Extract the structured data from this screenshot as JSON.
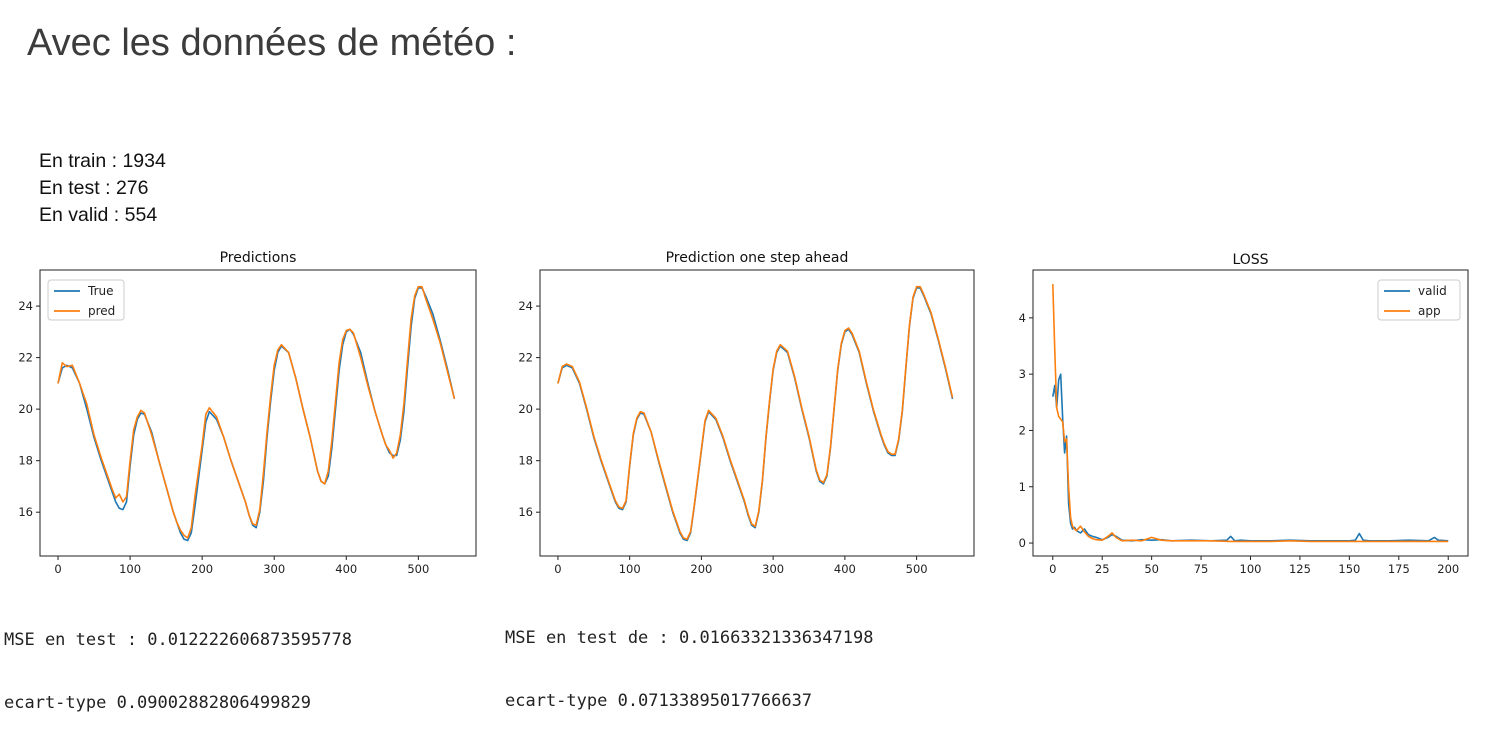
{
  "slide": {
    "title": "Avec les données de météo :",
    "counts": [
      "En train : 1934",
      "En test : 276",
      "En valid : 554"
    ]
  },
  "stats": {
    "pred": [
      "MSE en test : 0.012222606873595778",
      "ecart-type 0.09002882806499829"
    ],
    "osa": [
      "MSE en test de : 0.01663321336347198",
      "ecart-type 0.07133895017766637"
    ]
  },
  "colors": {
    "series1": "#1f77b4",
    "series2": "#ff7f0e"
  },
  "chart_data": [
    {
      "type": "line",
      "title": "Predictions",
      "xlim": [
        -25,
        580
      ],
      "ylim": [
        14.3,
        25.4
      ],
      "xticks": [
        0,
        100,
        200,
        300,
        400,
        500
      ],
      "yticks": [
        16,
        18,
        20,
        22,
        24
      ],
      "legend": "top-left",
      "x": [
        0,
        6,
        12,
        20,
        30,
        40,
        50,
        60,
        70,
        75,
        80,
        85,
        90,
        95,
        100,
        105,
        110,
        115,
        120,
        130,
        140,
        150,
        160,
        165,
        170,
        175,
        180,
        185,
        190,
        195,
        200,
        205,
        210,
        220,
        230,
        240,
        250,
        260,
        265,
        270,
        275,
        280,
        285,
        290,
        295,
        300,
        305,
        310,
        320,
        330,
        340,
        350,
        360,
        365,
        370,
        375,
        380,
        385,
        390,
        395,
        400,
        405,
        410,
        420,
        430,
        440,
        450,
        455,
        460,
        465,
        470,
        475,
        480,
        485,
        490,
        495,
        500,
        505,
        510,
        520,
        530,
        540,
        550
      ],
      "series": [
        {
          "name": "True",
          "values": [
            21.0,
            21.6,
            21.7,
            21.6,
            21.0,
            20.0,
            18.9,
            18.0,
            17.2,
            16.8,
            16.4,
            16.15,
            16.1,
            16.4,
            17.8,
            19.0,
            19.6,
            19.85,
            19.8,
            19.1,
            18.0,
            17.0,
            16.0,
            15.6,
            15.2,
            14.95,
            14.9,
            15.2,
            16.2,
            17.3,
            18.4,
            19.5,
            19.9,
            19.6,
            18.9,
            18.0,
            17.2,
            16.4,
            15.9,
            15.5,
            15.4,
            16.0,
            17.2,
            18.9,
            20.3,
            21.5,
            22.2,
            22.45,
            22.2,
            21.2,
            20.0,
            18.9,
            17.6,
            17.2,
            17.1,
            17.4,
            18.5,
            20.0,
            21.5,
            22.5,
            23.0,
            23.1,
            22.9,
            22.2,
            21.0,
            19.9,
            19.0,
            18.6,
            18.3,
            18.2,
            18.2,
            18.8,
            19.9,
            21.6,
            23.2,
            24.3,
            24.7,
            24.7,
            24.4,
            23.7,
            22.7,
            21.6,
            20.4
          ]
        },
        {
          "name": "pred",
          "values": [
            21.0,
            21.8,
            21.65,
            21.7,
            21.0,
            20.2,
            19.0,
            18.1,
            17.3,
            16.9,
            16.55,
            16.7,
            16.4,
            16.6,
            18.0,
            19.2,
            19.7,
            19.95,
            19.85,
            19.0,
            18.0,
            17.0,
            16.0,
            15.6,
            15.3,
            15.1,
            15.0,
            15.4,
            16.6,
            17.6,
            18.6,
            19.8,
            20.05,
            19.7,
            18.9,
            18.0,
            17.2,
            16.4,
            15.9,
            15.55,
            15.5,
            16.1,
            17.5,
            19.1,
            20.5,
            21.7,
            22.3,
            22.5,
            22.2,
            21.2,
            20.0,
            18.9,
            17.6,
            17.2,
            17.1,
            17.6,
            18.8,
            20.3,
            21.8,
            22.7,
            23.05,
            23.1,
            22.95,
            22.0,
            20.9,
            19.9,
            19.0,
            18.6,
            18.4,
            18.1,
            18.3,
            19.0,
            20.2,
            21.9,
            23.5,
            24.4,
            24.75,
            24.75,
            24.3,
            23.5,
            22.6,
            21.5,
            20.4
          ]
        }
      ]
    },
    {
      "type": "line",
      "title": "Prediction one step ahead",
      "xlim": [
        -25,
        580
      ],
      "ylim": [
        14.3,
        25.4
      ],
      "xticks": [
        0,
        100,
        200,
        300,
        400,
        500
      ],
      "yticks": [
        16,
        18,
        20,
        22,
        24
      ],
      "x": [
        0,
        6,
        12,
        20,
        30,
        40,
        50,
        60,
        70,
        75,
        80,
        85,
        90,
        95,
        100,
        105,
        110,
        115,
        120,
        130,
        140,
        150,
        160,
        165,
        170,
        175,
        180,
        185,
        190,
        195,
        200,
        205,
        210,
        220,
        230,
        240,
        250,
        260,
        265,
        270,
        275,
        280,
        285,
        290,
        295,
        300,
        305,
        310,
        320,
        330,
        340,
        350,
        360,
        365,
        370,
        375,
        380,
        385,
        390,
        395,
        400,
        405,
        410,
        420,
        430,
        440,
        450,
        455,
        460,
        465,
        470,
        475,
        480,
        485,
        490,
        495,
        500,
        505,
        510,
        520,
        530,
        540,
        550
      ],
      "series": [
        {
          "values": [
            21.0,
            21.6,
            21.7,
            21.6,
            21.0,
            20.0,
            18.9,
            18.0,
            17.2,
            16.8,
            16.4,
            16.15,
            16.1,
            16.4,
            17.8,
            19.0,
            19.6,
            19.85,
            19.8,
            19.1,
            18.0,
            17.0,
            16.0,
            15.6,
            15.2,
            14.95,
            14.9,
            15.2,
            16.2,
            17.3,
            18.4,
            19.5,
            19.9,
            19.6,
            18.9,
            18.0,
            17.2,
            16.4,
            15.9,
            15.5,
            15.4,
            16.0,
            17.2,
            18.9,
            20.3,
            21.5,
            22.2,
            22.45,
            22.2,
            21.2,
            20.0,
            18.9,
            17.6,
            17.2,
            17.1,
            17.4,
            18.5,
            20.0,
            21.5,
            22.5,
            23.0,
            23.1,
            22.9,
            22.2,
            21.0,
            19.9,
            19.0,
            18.6,
            18.3,
            18.2,
            18.2,
            18.8,
            19.9,
            21.6,
            23.2,
            24.3,
            24.7,
            24.7,
            24.4,
            23.7,
            22.7,
            21.6,
            20.4
          ]
        },
        {
          "values": [
            21.0,
            21.65,
            21.75,
            21.65,
            21.05,
            20.05,
            18.95,
            18.05,
            17.25,
            16.85,
            16.45,
            16.2,
            16.15,
            16.45,
            17.85,
            19.05,
            19.65,
            19.9,
            19.85,
            19.1,
            18.05,
            17.05,
            16.05,
            15.65,
            15.25,
            15.0,
            14.95,
            15.25,
            16.25,
            17.35,
            18.45,
            19.55,
            19.95,
            19.65,
            18.95,
            18.05,
            17.25,
            16.45,
            15.95,
            15.55,
            15.45,
            16.05,
            17.25,
            18.95,
            20.35,
            21.55,
            22.25,
            22.5,
            22.25,
            21.25,
            20.05,
            18.95,
            17.65,
            17.25,
            17.15,
            17.45,
            18.55,
            20.05,
            21.55,
            22.55,
            23.05,
            23.15,
            22.95,
            22.25,
            21.05,
            19.95,
            19.05,
            18.65,
            18.35,
            18.25,
            18.25,
            18.85,
            19.95,
            21.65,
            23.25,
            24.35,
            24.75,
            24.75,
            24.45,
            23.75,
            22.75,
            21.65,
            20.45
          ]
        }
      ]
    },
    {
      "type": "line",
      "title": "LOSS",
      "xlim": [
        -10,
        210
      ],
      "ylim": [
        -0.23,
        4.85
      ],
      "xticks": [
        0,
        25,
        50,
        75,
        100,
        125,
        150,
        175,
        200
      ],
      "yticks": [
        0,
        1,
        2,
        3,
        4
      ],
      "legend": "top-right",
      "series": [
        {
          "name": "valid",
          "x": [
            0,
            1,
            2,
            3,
            4,
            5,
            6,
            7,
            8,
            9,
            10,
            11,
            12,
            14,
            16,
            18,
            20,
            22,
            25,
            28,
            30,
            32,
            35,
            40,
            45,
            50,
            55,
            60,
            70,
            80,
            88,
            90,
            92,
            95,
            100,
            110,
            120,
            130,
            140,
            150,
            153,
            155,
            157,
            160,
            170,
            180,
            190,
            193,
            195,
            200
          ],
          "values": [
            2.6,
            2.8,
            2.4,
            2.9,
            3.0,
            2.2,
            1.6,
            1.9,
            0.7,
            0.35,
            0.25,
            0.28,
            0.22,
            0.18,
            0.25,
            0.15,
            0.12,
            0.1,
            0.06,
            0.1,
            0.15,
            0.12,
            0.05,
            0.04,
            0.06,
            0.05,
            0.06,
            0.04,
            0.05,
            0.04,
            0.05,
            0.12,
            0.04,
            0.05,
            0.04,
            0.04,
            0.05,
            0.04,
            0.04,
            0.04,
            0.05,
            0.17,
            0.05,
            0.04,
            0.04,
            0.05,
            0.04,
            0.1,
            0.05,
            0.04
          ]
        },
        {
          "name": "app",
          "x": [
            0,
            1,
            2,
            3,
            4,
            5,
            6,
            7,
            8,
            9,
            10,
            11,
            12,
            14,
            16,
            18,
            20,
            22,
            25,
            28,
            30,
            32,
            35,
            40,
            45,
            50,
            55,
            60,
            70,
            80,
            90,
            100,
            110,
            120,
            130,
            140,
            150,
            160,
            170,
            180,
            190,
            200
          ],
          "values": [
            4.6,
            3.4,
            2.4,
            2.25,
            2.2,
            2.15,
            1.8,
            1.85,
            1.0,
            0.45,
            0.3,
            0.25,
            0.22,
            0.3,
            0.2,
            0.12,
            0.08,
            0.06,
            0.05,
            0.12,
            0.18,
            0.1,
            0.04,
            0.05,
            0.04,
            0.1,
            0.05,
            0.04,
            0.04,
            0.04,
            0.03,
            0.03,
            0.03,
            0.04,
            0.03,
            0.03,
            0.03,
            0.03,
            0.03,
            0.03,
            0.03,
            0.03
          ]
        }
      ]
    }
  ]
}
